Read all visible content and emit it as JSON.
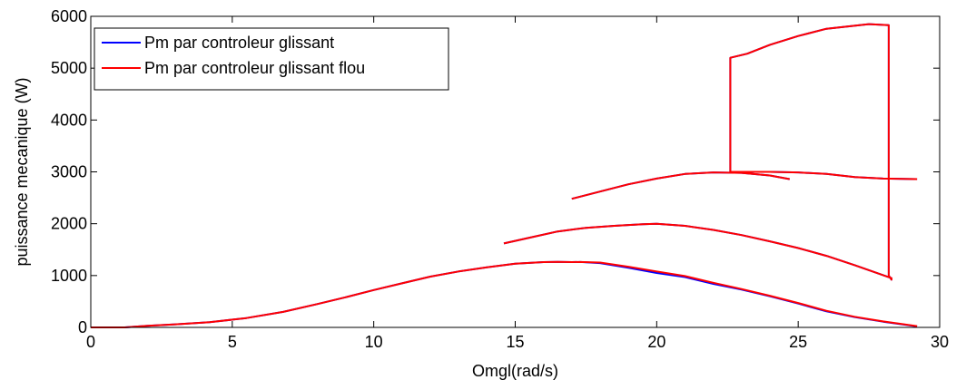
{
  "chart_data": {
    "type": "line",
    "xlabel": "Omgl(rad/s)",
    "ylabel": "puissance mecanique (W)",
    "xlim": [
      0,
      30
    ],
    "ylim": [
      0,
      6000
    ],
    "xticks": [
      0,
      5,
      10,
      15,
      20,
      25,
      30
    ],
    "yticks": [
      0,
      1000,
      2000,
      3000,
      4000,
      5000,
      6000
    ],
    "xtick_labels": [
      "0",
      "5",
      "10",
      "15",
      "20",
      "25",
      "30"
    ],
    "ytick_labels": [
      "0",
      "1000",
      "2000",
      "3000",
      "4000",
      "5000",
      "6000"
    ],
    "grid": false,
    "legend_position": "top-left",
    "series": [
      {
        "name": "Pm par controleur glissant",
        "color": "#0000ff",
        "x": [
          0,
          1.2,
          2,
          3,
          4.2,
          5.5,
          6.8,
          8,
          9,
          10,
          11,
          12,
          13,
          14,
          15,
          16,
          16.5,
          17,
          17,
          17.3,
          18,
          19,
          20,
          21,
          22,
          23,
          24,
          25,
          26,
          27,
          28,
          29.2,
          null,
          14.6,
          15.5,
          16.5,
          17.5,
          18.5,
          19.5,
          20,
          21,
          22,
          23,
          24,
          25,
          26,
          27,
          28.3,
          28.3,
          28.2,
          28.2,
          27.5,
          26,
          25,
          24,
          23.2,
          22.6,
          22.6,
          22.6,
          23,
          24,
          25,
          26,
          27,
          28,
          29.2,
          null,
          17,
          18,
          19,
          20,
          21,
          22,
          23,
          24,
          24.7
        ],
        "y": [
          0,
          0,
          30,
          60,
          100,
          180,
          300,
          450,
          580,
          720,
          850,
          980,
          1080,
          1160,
          1230,
          1260,
          1265,
          1260,
          1260,
          1262,
          1240,
          1150,
          1050,
          970,
          840,
          730,
          600,
          460,
          310,
          200,
          110,
          20,
          null,
          1620,
          1730,
          1850,
          1920,
          1960,
          1990,
          2000,
          1960,
          1880,
          1780,
          1660,
          1530,
          1380,
          1200,
          950,
          920,
          1000,
          5830,
          5850,
          5760,
          5620,
          5450,
          5280,
          5200,
          3000,
          3000,
          3000,
          3000,
          2990,
          2960,
          2900,
          2870,
          2860,
          null,
          2480,
          2620,
          2760,
          2870,
          2960,
          2990,
          2980,
          2930,
          2860
        ]
      },
      {
        "name": "Pm par controleur glissant flou",
        "color": "#ff0000",
        "x": [
          0,
          1.2,
          2,
          3,
          4.2,
          5.5,
          6.8,
          8,
          9,
          10,
          11,
          12,
          13,
          14,
          15,
          16,
          16.5,
          17,
          17,
          17.3,
          18,
          19,
          20,
          21,
          22,
          23,
          24,
          25,
          26,
          27,
          28,
          29.2,
          null,
          14.6,
          15.5,
          16.5,
          17.5,
          18.5,
          19.5,
          20,
          21,
          22,
          23,
          24,
          25,
          26,
          27,
          28.3,
          28.3,
          28.2,
          28.2,
          27.5,
          26,
          25,
          24,
          23.2,
          22.6,
          22.6,
          22.6,
          23,
          24,
          25,
          26,
          27,
          28,
          29.2,
          null,
          17,
          18,
          19,
          20,
          21,
          22,
          23,
          24,
          24.7
        ],
        "y": [
          0,
          0,
          30,
          60,
          100,
          180,
          300,
          450,
          580,
          720,
          850,
          980,
          1080,
          1160,
          1230,
          1260,
          1265,
          1260,
          1260,
          1262,
          1250,
          1170,
          1080,
          990,
          860,
          740,
          610,
          470,
          320,
          205,
          115,
          25,
          null,
          1620,
          1730,
          1850,
          1920,
          1960,
          1990,
          2000,
          1960,
          1880,
          1780,
          1660,
          1530,
          1380,
          1200,
          950,
          920,
          1000,
          5830,
          5850,
          5760,
          5620,
          5450,
          5280,
          5200,
          3000,
          3000,
          3000,
          3000,
          2990,
          2960,
          2900,
          2870,
          2860,
          null,
          2480,
          2620,
          2760,
          2870,
          2960,
          2990,
          2980,
          2930,
          2860
        ]
      }
    ]
  }
}
